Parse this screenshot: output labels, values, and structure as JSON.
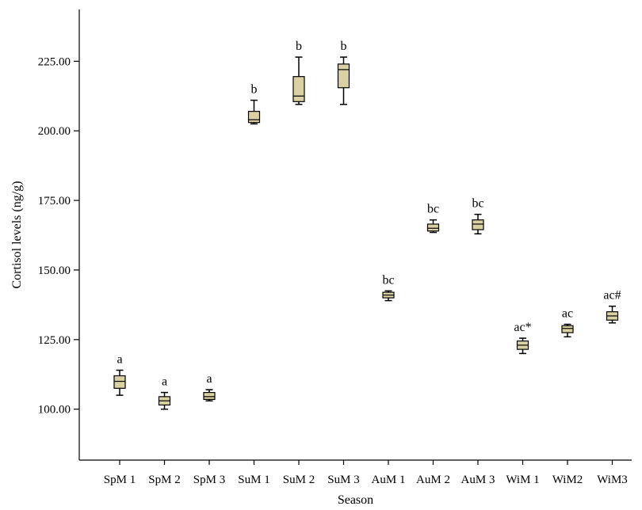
{
  "chart_data": {
    "type": "box",
    "xlabel": "Season",
    "ylabel": "Cortisol levels (ng/g)",
    "ylim": [
      81.7,
      243.6
    ],
    "yticks": [
      100.0,
      125.0,
      150.0,
      175.0,
      200.0,
      225.0
    ],
    "ytick_labels": [
      "100.00",
      "125.00",
      "150.00",
      "175.00",
      "200.00",
      "225.00"
    ],
    "grid": false,
    "box_color": "#d9d1a1",
    "categories": [
      "SpM 1",
      "SpM 2",
      "SpM 3",
      "SuM 1",
      "SuM 2",
      "SuM 3",
      "AuM 1",
      "AuM 2",
      "AuM 3",
      "WiM 1",
      "WiM2",
      "WiM3"
    ],
    "boxes": [
      {
        "min": 105.0,
        "q1": 107.5,
        "median": 110.0,
        "q3": 112.0,
        "max": 114.0,
        "label": "a"
      },
      {
        "min": 100.0,
        "q1": 101.5,
        "median": 103.0,
        "q3": 104.5,
        "max": 106.0,
        "label": "a"
      },
      {
        "min": 103.0,
        "q1": 103.5,
        "median": 104.5,
        "q3": 106.0,
        "max": 107.0,
        "label": "a"
      },
      {
        "min": 202.5,
        "q1": 203.0,
        "median": 204.0,
        "q3": 207.0,
        "max": 211.0,
        "label": "b"
      },
      {
        "min": 209.5,
        "q1": 210.5,
        "median": 212.5,
        "q3": 219.5,
        "max": 226.5,
        "label": "b"
      },
      {
        "min": 209.5,
        "q1": 215.5,
        "median": 222.0,
        "q3": 224.0,
        "max": 226.5,
        "label": "b"
      },
      {
        "min": 139.0,
        "q1": 140.0,
        "median": 141.0,
        "q3": 142.0,
        "max": 142.5,
        "label": "bc"
      },
      {
        "min": 163.5,
        "q1": 164.0,
        "median": 165.0,
        "q3": 166.5,
        "max": 168.0,
        "label": "bc"
      },
      {
        "min": 163.0,
        "q1": 164.5,
        "median": 166.5,
        "q3": 168.0,
        "max": 170.0,
        "label": "bc"
      },
      {
        "min": 120.0,
        "q1": 121.5,
        "median": 123.0,
        "q3": 124.5,
        "max": 125.5,
        "label": "ac*"
      },
      {
        "min": 126.0,
        "q1": 127.5,
        "median": 129.0,
        "q3": 130.0,
        "max": 130.5,
        "label": "ac"
      },
      {
        "min": 131.0,
        "q1": 132.0,
        "median": 133.5,
        "q3": 135.0,
        "max": 137.0,
        "label": "ac#"
      }
    ]
  }
}
